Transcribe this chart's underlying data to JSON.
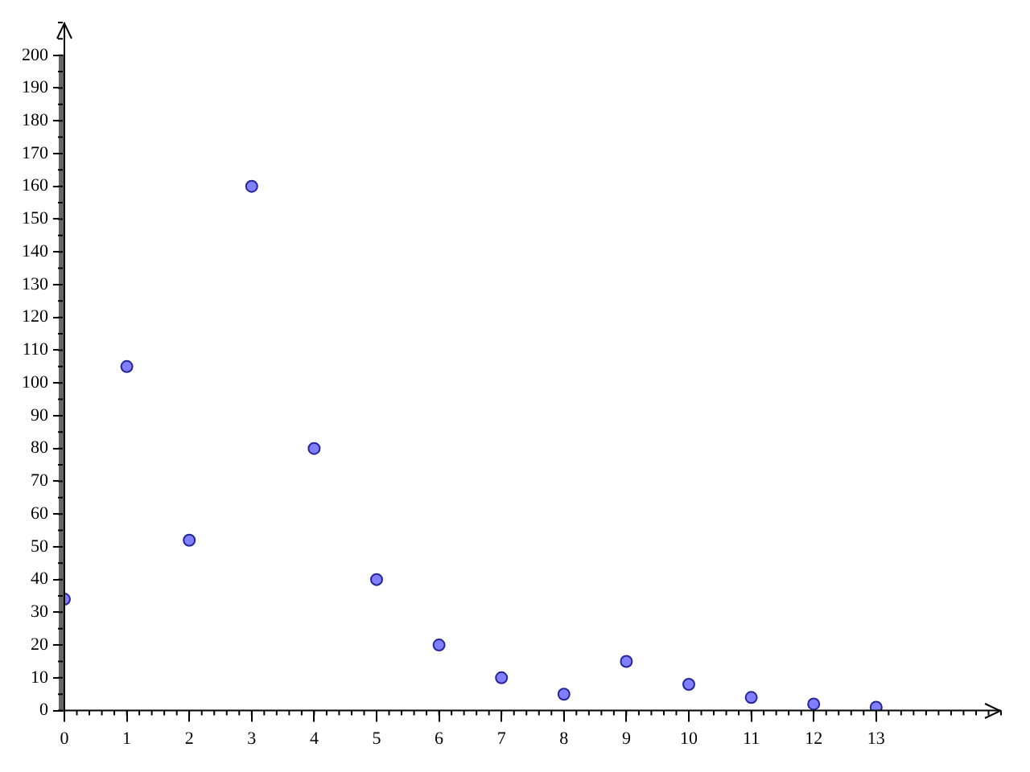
{
  "chart_data": {
    "type": "scatter",
    "x": [
      0,
      1,
      2,
      3,
      4,
      5,
      6,
      7,
      8,
      9,
      10,
      11,
      12,
      13
    ],
    "series": [
      {
        "color": "#7f7fff",
        "values": [
          34,
          105,
          52,
          160,
          80,
          40,
          20,
          10,
          5,
          15,
          8,
          4,
          2,
          1
        ]
      }
    ],
    "xlim": [
      0,
      15
    ],
    "ylim": [
      0,
      210
    ],
    "xticks": [
      0,
      1,
      2,
      3,
      4,
      5,
      6,
      7,
      8,
      9,
      10,
      11,
      12,
      13
    ],
    "yticks": [
      0,
      10,
      20,
      30,
      40,
      50,
      60,
      70,
      80,
      90,
      100,
      110,
      120,
      130,
      140,
      150,
      160,
      170,
      180,
      190,
      200
    ],
    "grid": false,
    "legend": false,
    "marker": "circle"
  }
}
